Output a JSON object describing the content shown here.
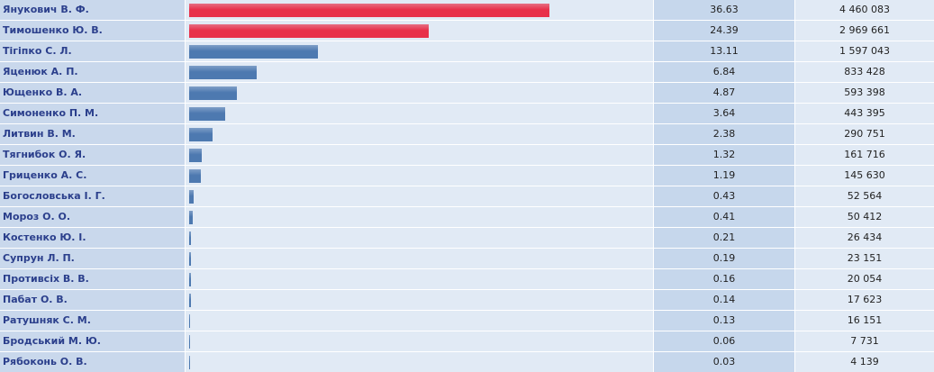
{
  "chart_data": {
    "type": "bar",
    "categories": [
      "Янукович В. Ф.",
      "Тимошенко Ю. В.",
      "Тігіпко С. Л.",
      "Яценюк А. П.",
      "Ющенко В. А.",
      "Симоненко П. М.",
      "Литвин В. М.",
      "Тягнибок О. Я.",
      "Гриценко А. С.",
      "Богословська І. Г.",
      "Мороз О. О.",
      "Костенко Ю. І.",
      "Супрун Л. П.",
      "Противсіх В. В.",
      "Пабат О. В.",
      "Ратушняк С. М.",
      "Бродський М. Ю.",
      "Рябоконь О. В."
    ],
    "values": [
      36.63,
      24.39,
      13.11,
      6.84,
      4.87,
      3.64,
      2.38,
      1.32,
      1.19,
      0.43,
      0.41,
      0.21,
      0.19,
      0.16,
      0.14,
      0.13,
      0.06,
      0.03
    ],
    "colors": [
      "#e8304a",
      "#e8304a",
      "#4d79b0",
      "#4d79b0",
      "#4d79b0",
      "#4d79b0",
      "#4d79b0",
      "#4d79b0",
      "#4d79b0",
      "#4d79b0",
      "#4d79b0",
      "#4d79b0",
      "#4d79b0",
      "#4d79b0",
      "#4d79b0",
      "#4d79b0",
      "#4d79b0",
      "#4d79b0"
    ],
    "votes": {
      "values": [
        4460083,
        2969661,
        1597043,
        833428,
        593398,
        443395,
        290751,
        161716,
        145630,
        52564,
        50412,
        26434,
        23151,
        20054,
        17623,
        16151,
        7731,
        4139
      ],
      "value_labels": [
        "4 460 083",
        "2 969 661",
        "1 597 043",
        "833 428",
        "593 398",
        "443 395",
        "290 751",
        "161 716",
        "145 630",
        "52 564",
        "50 412",
        "26 434",
        "23 151",
        "20 054",
        "17 623",
        "16 151",
        "7 731",
        "4 139"
      ]
    }
  }
}
